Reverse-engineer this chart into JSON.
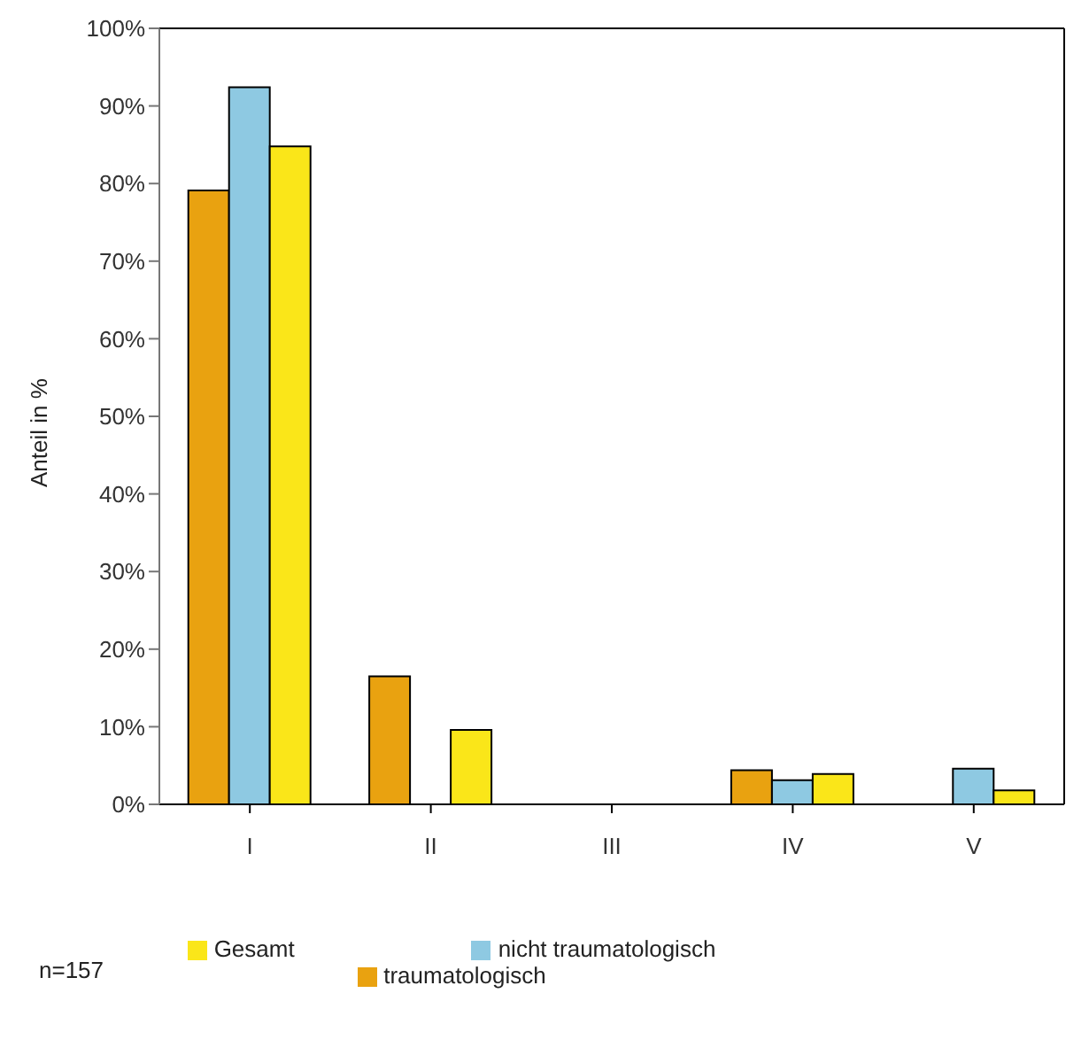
{
  "chart_data": {
    "type": "bar",
    "ylabel": "Anteil in %",
    "categories": [
      "I",
      "II",
      "III",
      "IV",
      "V"
    ],
    "series": [
      {
        "name": "traumatologisch",
        "color": "#e9a210",
        "values": [
          79.1,
          16.5,
          0,
          4.4,
          0
        ]
      },
      {
        "name": "nicht traumatologisch",
        "color": "#8ec9e2",
        "values": [
          92.4,
          0,
          0,
          3.1,
          4.6
        ]
      },
      {
        "name": "Gesamt",
        "color": "#fae619",
        "values": [
          84.8,
          9.6,
          0,
          3.9,
          1.8
        ]
      }
    ],
    "ylim": [
      0,
      100
    ],
    "yticks": [
      {
        "value": 0,
        "label": "0%"
      },
      {
        "value": 10,
        "label": "10%"
      },
      {
        "value": 20,
        "label": "20%"
      },
      {
        "value": 30,
        "label": "30%"
      },
      {
        "value": 40,
        "label": "40%"
      },
      {
        "value": 50,
        "label": "50%"
      },
      {
        "value": 60,
        "label": "60%"
      },
      {
        "value": 70,
        "label": "70%"
      },
      {
        "value": 80,
        "label": "80%"
      },
      {
        "value": 90,
        "label": "90%"
      },
      {
        "value": 100,
        "label": "100%"
      }
    ],
    "grid": false,
    "legend": "bottom",
    "annotations": [
      "n=157"
    ]
  }
}
